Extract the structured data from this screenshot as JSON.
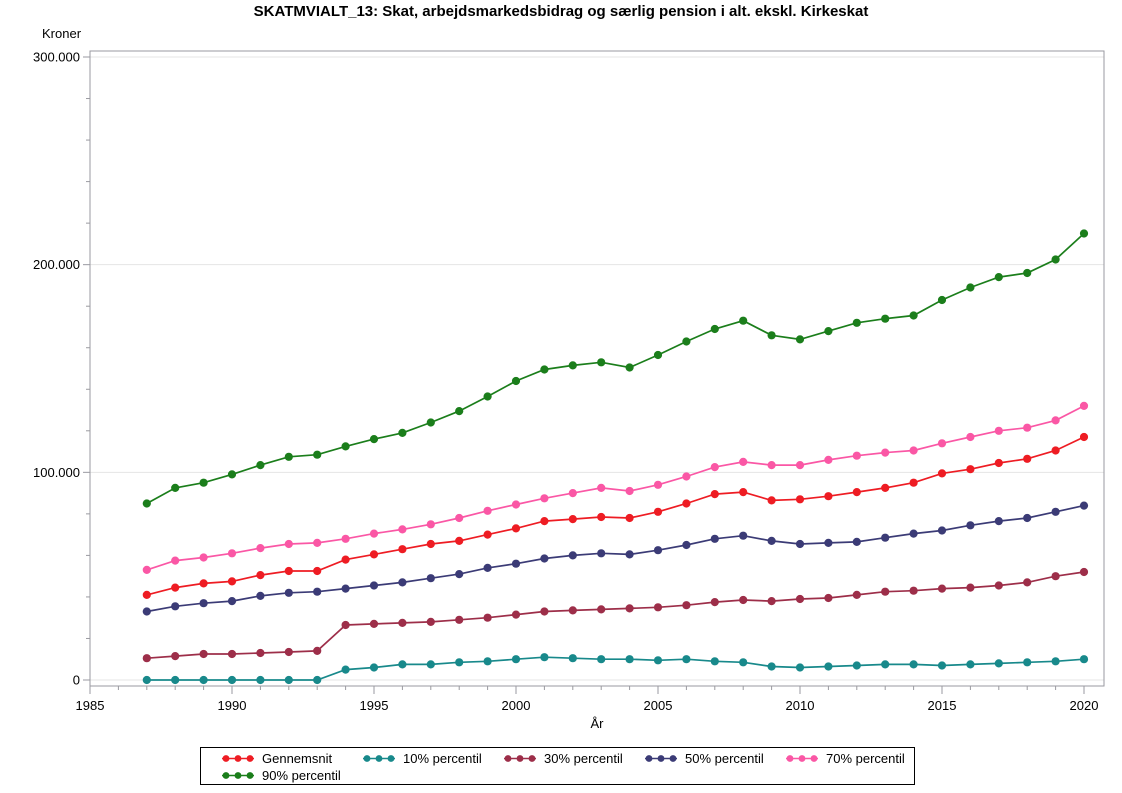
{
  "chart_data": {
    "type": "line",
    "title": "SKATMVIALT_13: Skat, arbejdsmarkedsbidrag og særlig pension i alt. ekskl. Kirkeskat",
    "xlabel": "År",
    "ylabel": "Kroner",
    "xlim": [
      1985,
      2020.7
    ],
    "ylim": [
      0,
      300000
    ],
    "x_ticks": [
      1985,
      1990,
      1995,
      2000,
      2005,
      2010,
      2015,
      2020
    ],
    "x_tick_labels": [
      "1985",
      "1990",
      "1995",
      "2000",
      "2005",
      "2010",
      "2015",
      "2020"
    ],
    "x_minor_step": 1,
    "y_ticks": [
      0,
      100000,
      200000,
      300000
    ],
    "y_tick_labels": [
      "0",
      "100.000",
      "200.000",
      "300.000"
    ],
    "y_minor_step": 20000,
    "grid": "horizontal-major-gridlines",
    "legend_position": "bottom",
    "frame_color": "#9a9aa0",
    "gridline_color": "#e4e4e4",
    "years": [
      1987,
      1988,
      1989,
      1990,
      1991,
      1992,
      1993,
      1994,
      1995,
      1996,
      1997,
      1998,
      1999,
      2000,
      2001,
      2002,
      2003,
      2004,
      2005,
      2006,
      2007,
      2008,
      2009,
      2010,
      2011,
      2012,
      2013,
      2014,
      2015,
      2016,
      2017,
      2018,
      2019,
      2020
    ],
    "series": [
      {
        "name": "Gennemsnit",
        "color": "#ee1c23",
        "values": [
          41000,
          44500,
          46500,
          47500,
          50500,
          52500,
          52500,
          58000,
          60500,
          63000,
          65500,
          67000,
          70000,
          73000,
          76500,
          77500,
          78500,
          78000,
          81000,
          85000,
          89500,
          90500,
          86500,
          87000,
          88500,
          90500,
          92500,
          95000,
          99500,
          101500,
          104500,
          106500,
          110500,
          117000
        ]
      },
      {
        "name": "10% percentil",
        "color": "#18898b",
        "values": [
          0,
          0,
          0,
          0,
          0,
          0,
          0,
          5000,
          6000,
          7500,
          7500,
          8500,
          9000,
          10000,
          11000,
          10500,
          10000,
          10000,
          9500,
          10000,
          9000,
          8500,
          6500,
          6000,
          6500,
          7000,
          7500,
          7500,
          7000,
          7500,
          8000,
          8500,
          9000,
          10000
        ]
      },
      {
        "name": "30% percentil",
        "color": "#9d2e49",
        "values": [
          10500,
          11500,
          12500,
          12500,
          13000,
          13500,
          14000,
          26500,
          27000,
          27500,
          28000,
          29000,
          30000,
          31500,
          33000,
          33500,
          34000,
          34500,
          35000,
          36000,
          37500,
          38500,
          38000,
          39000,
          39500,
          41000,
          42500,
          43000,
          44000,
          44500,
          45500,
          47000,
          50000,
          52000
        ]
      },
      {
        "name": "50% percentil",
        "color": "#3b3b76",
        "values": [
          33000,
          35500,
          37000,
          38000,
          40500,
          42000,
          42500,
          44000,
          45500,
          47000,
          49000,
          51000,
          54000,
          56000,
          58500,
          60000,
          61000,
          60500,
          62500,
          65000,
          68000,
          69500,
          67000,
          65500,
          66000,
          66500,
          68500,
          70500,
          72000,
          74500,
          76500,
          78000,
          81000,
          84000
        ]
      },
      {
        "name": "70% percentil",
        "color": "#fa57a5",
        "values": [
          53000,
          57500,
          59000,
          61000,
          63500,
          65500,
          66000,
          68000,
          70500,
          72500,
          75000,
          78000,
          81500,
          84500,
          87500,
          90000,
          92500,
          91000,
          94000,
          98000,
          102500,
          105000,
          103500,
          103500,
          106000,
          108000,
          109500,
          110500,
          114000,
          117000,
          120000,
          121500,
          125000,
          132000
        ]
      },
      {
        "name": "90% percentil",
        "color": "#1b7e1b",
        "values": [
          85000,
          92500,
          95000,
          99000,
          103500,
          107500,
          108500,
          112500,
          116000,
          119000,
          124000,
          129500,
          136500,
          144000,
          149500,
          151500,
          153000,
          150500,
          156500,
          163000,
          169000,
          173000,
          166000,
          164000,
          168000,
          172000,
          174000,
          175500,
          183000,
          189000,
          194000,
          196000,
          202500,
          215000
        ]
      }
    ]
  }
}
